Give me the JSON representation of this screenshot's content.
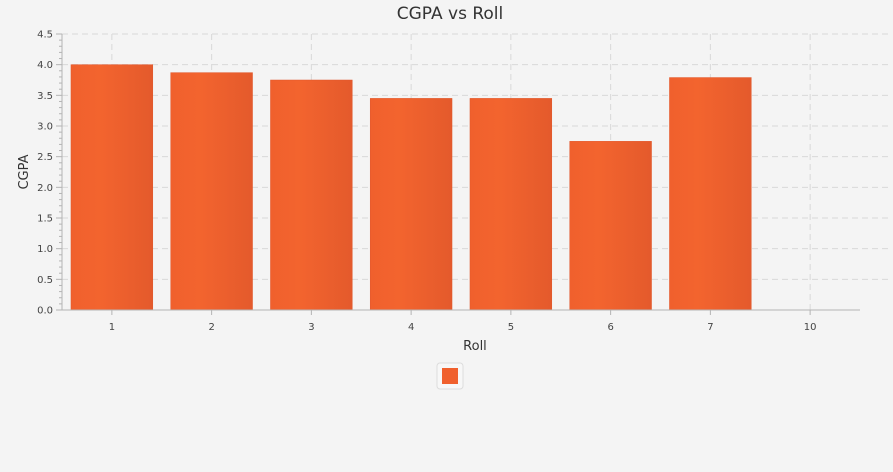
{
  "chart_data": {
    "type": "bar",
    "title": "CGPA vs Roll",
    "xlabel": "Roll",
    "ylabel": "CGPA",
    "categories": [
      "1",
      "2",
      "3",
      "4",
      "5",
      "6",
      "7",
      "10"
    ],
    "values": [
      4.0,
      3.87,
      3.75,
      3.45,
      3.45,
      2.75,
      3.79,
      null
    ],
    "ylim": [
      0,
      4.5
    ],
    "yticks": [
      "0.0",
      "0.5",
      "1.0",
      "1.5",
      "2.0",
      "2.5",
      "3.0",
      "3.5",
      "4.0",
      "4.5"
    ],
    "grid": true,
    "legend": {
      "placement": "bottom-center",
      "entries": [
        ""
      ]
    },
    "colors": {
      "bar": "#f0602d",
      "bar_edge": "#e0562a"
    }
  }
}
